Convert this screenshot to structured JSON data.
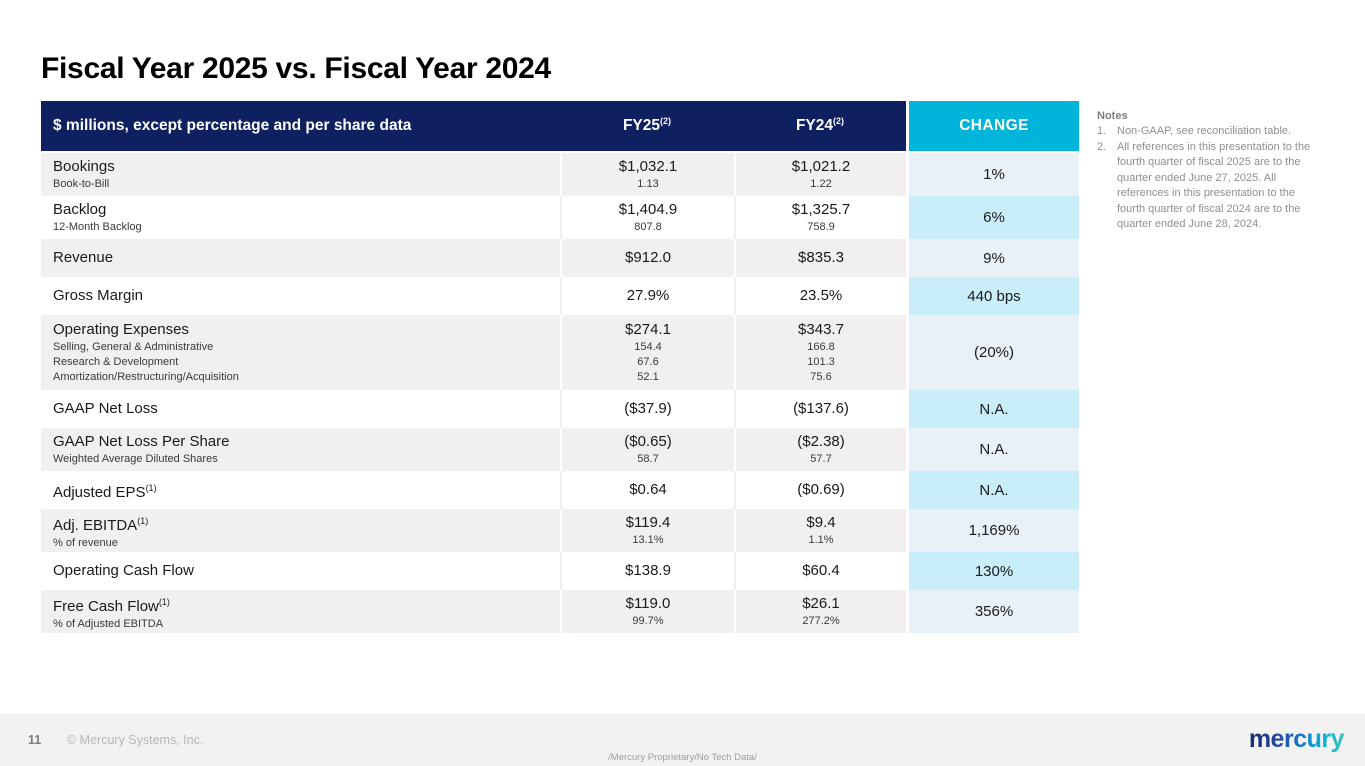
{
  "slide": {
    "title": "Fiscal Year 2025 vs. Fiscal Year 2024"
  },
  "table": {
    "header": {
      "label": "$ millions, except percentage and per share data",
      "fy25": "FY25",
      "fy25_sup": "(2)",
      "fy24": "FY24",
      "fy24_sup": "(2)",
      "change": "CHANGE"
    },
    "rows": [
      {
        "label": "Bookings",
        "sup": "",
        "fy25": "$1,032.1",
        "fy24": "$1,021.2",
        "change": "1%",
        "subs": [
          {
            "label": "Book-to-Bill",
            "fy25": "1.13",
            "fy24": "1.22"
          }
        ]
      },
      {
        "label": "Backlog",
        "sup": "",
        "fy25": "$1,404.9",
        "fy24": "$1,325.7",
        "change": "6%",
        "subs": [
          {
            "label": "12-Month Backlog",
            "fy25": "807.8",
            "fy24": "758.9"
          }
        ]
      },
      {
        "label": "Revenue",
        "sup": "",
        "fy25": "$912.0",
        "fy24": "$835.3",
        "change": "9%",
        "subs": []
      },
      {
        "label": "Gross Margin",
        "sup": "",
        "fy25": "27.9%",
        "fy24": "23.5%",
        "change": "440 bps",
        "subs": []
      },
      {
        "label": "Operating Expenses",
        "sup": "",
        "fy25": "$274.1",
        "fy24": "$343.7",
        "change": "(20%)",
        "subs": [
          {
            "label": "Selling, General & Administrative",
            "fy25": "154.4",
            "fy24": "166.8"
          },
          {
            "label": "Research & Development",
            "fy25": "67.6",
            "fy24": "101.3"
          },
          {
            "label": "Amortization/Restructuring/Acquisition",
            "fy25": "52.1",
            "fy24": "75.6"
          }
        ]
      },
      {
        "label": "GAAP Net Loss",
        "sup": "",
        "fy25": "($37.9)",
        "fy24": "($137.6)",
        "change": "N.A.",
        "subs": []
      },
      {
        "label": "GAAP Net Loss Per Share",
        "sup": "",
        "fy25": "($0.65)",
        "fy24": "($2.38)",
        "change": "N.A.",
        "subs": [
          {
            "label": "Weighted Average Diluted Shares",
            "fy25": "58.7",
            "fy24": "57.7"
          }
        ]
      },
      {
        "label": "Adjusted EPS",
        "sup": "(1)",
        "fy25": "$0.64",
        "fy24": "($0.69)",
        "change": "N.A.",
        "subs": []
      },
      {
        "label": "Adj. EBITDA",
        "sup": "(1)",
        "fy25": "$119.4",
        "fy24": "$9.4",
        "change": "1,169%",
        "subs": [
          {
            "label": "% of revenue",
            "fy25": "13.1%",
            "fy24": "1.1%"
          }
        ]
      },
      {
        "label": "Operating Cash Flow",
        "sup": "",
        "fy25": "$138.9",
        "fy24": "$60.4",
        "change": "130%",
        "subs": []
      },
      {
        "label": "Free Cash Flow",
        "sup": "(1)",
        "fy25": "$119.0",
        "fy24": "$26.1",
        "change": "356%",
        "subs": [
          {
            "label": "% of Adjusted EBITDA",
            "fy25": "99.7%",
            "fy24": "277.2%"
          }
        ]
      }
    ]
  },
  "notes": {
    "heading": "Notes",
    "items": [
      {
        "num": "1.",
        "text": "Non-GAAP, see reconciliation table."
      },
      {
        "num": "2.",
        "text": "All references in this presentation to the fourth quarter of fiscal 2025 are to the quarter ended June 27, 2025. All references in this presentation to the fourth quarter of fiscal 2024 are to the quarter ended June 28, 2024."
      }
    ]
  },
  "footer": {
    "page_number": "11",
    "copyright": "© Mercury Systems, Inc.",
    "proprietary": "/Mercury Proprietary/No Tech Data/",
    "logo_text": "mercury"
  },
  "colors": {
    "header_navy": "#0e2060",
    "header_cyan": "#00b4da",
    "row_gray": "#f1eff0",
    "row_white": "#ffffff",
    "change_pale_blue": "#e8f1f8",
    "change_light_cyan": "#c9eefa",
    "footer_bg": "#f2f2f2"
  }
}
